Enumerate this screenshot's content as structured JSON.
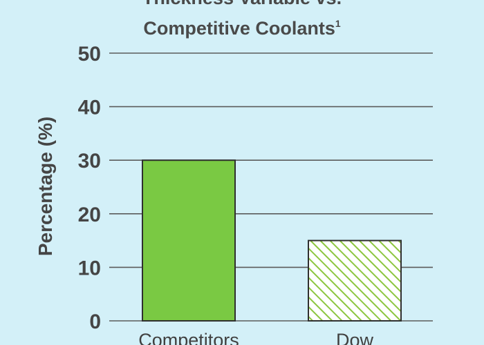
{
  "chart_data": {
    "type": "bar",
    "title_lines": [
      "Thickness Variable vs.",
      "Competitive Coolants"
    ],
    "title_superscript": "1",
    "xlabel": "",
    "ylabel": "Percentage (%)",
    "categories": [
      "Competitors",
      "Dow"
    ],
    "values": [
      30,
      15
    ],
    "ylim": [
      0,
      50
    ],
    "yticks": [
      "0",
      "10",
      "20",
      "30",
      "40",
      "50"
    ],
    "grid": true,
    "legend": "none",
    "colors": {
      "background": "#d3f0f8",
      "gridline": "#5a5a5a",
      "competitors_fill": "#7ac943",
      "dow_fill": "#ffffff",
      "dow_hatch": "#8cc63f",
      "bar_outline": "#2f2f2f",
      "text": "#454545"
    },
    "bar_styles": [
      "solid",
      "hatched"
    ]
  }
}
